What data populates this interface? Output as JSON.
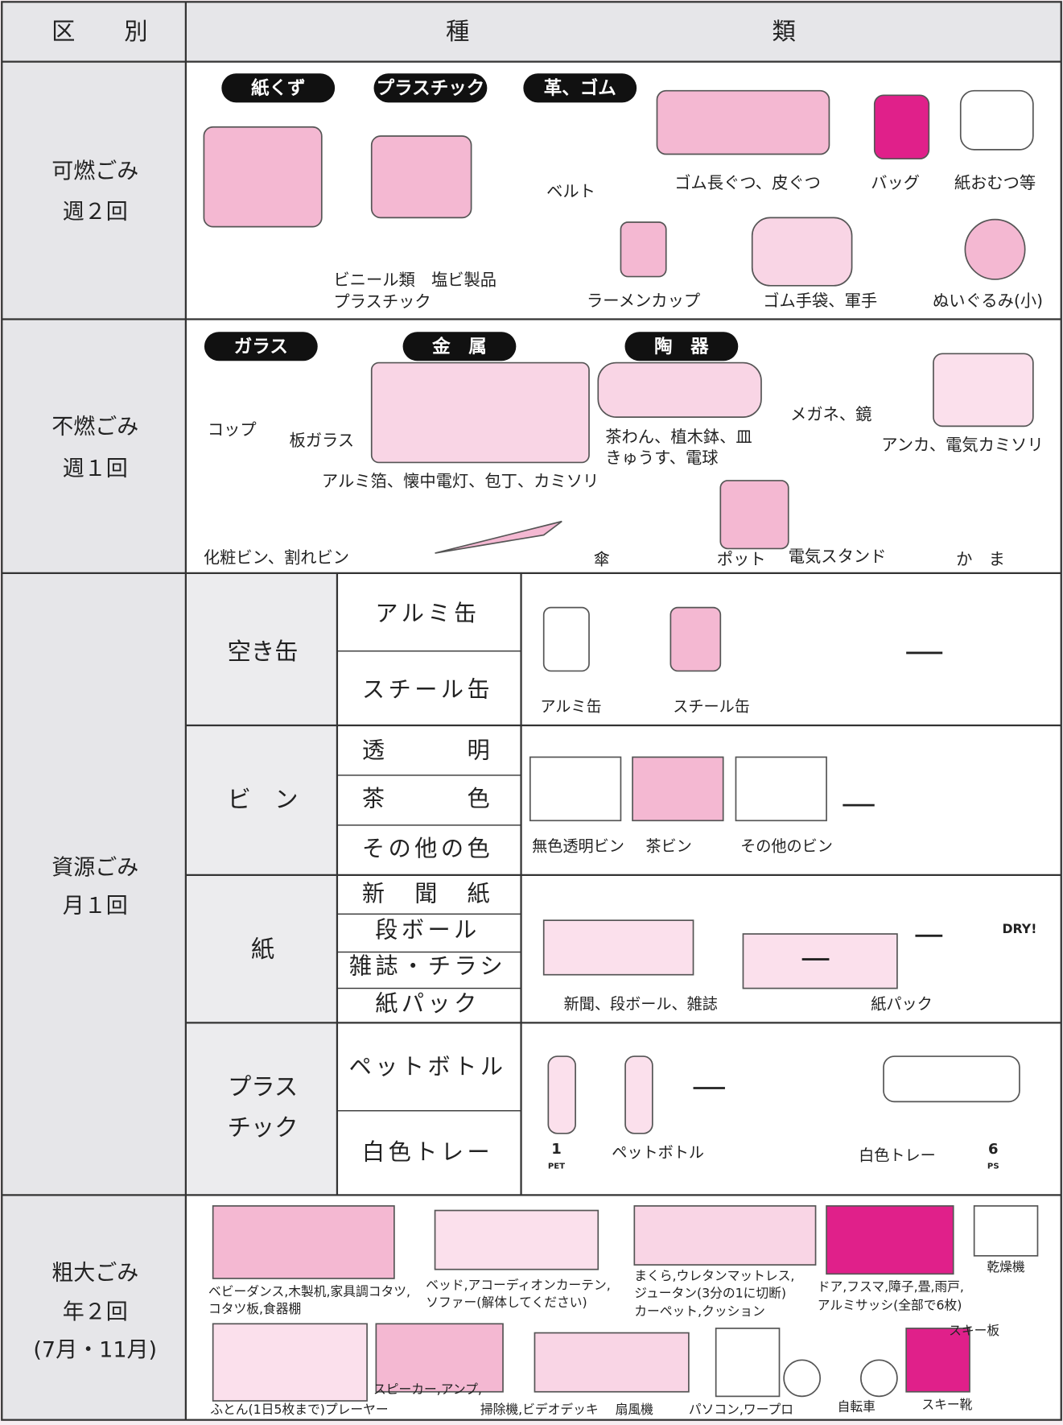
{
  "header": {
    "category": [
      "区",
      "別"
    ],
    "types": [
      "種",
      "類"
    ]
  },
  "combustible": {
    "name": "可燃ごみ",
    "schedule": "週２回",
    "tags": [
      "紙くず",
      "プラスチック",
      "革、ゴム"
    ],
    "items": [
      "ベルト",
      "ゴム長ぐつ、皮ぐつ",
      "バッグ",
      "紙おむつ等",
      "ビニール類　塩ビ製品",
      "プラスチック",
      "ラーメンカップ",
      "ゴム手袋、軍手",
      "ぬいぐるみ(小)"
    ]
  },
  "noncombustible": {
    "name": "不燃ごみ",
    "schedule": "週１回",
    "tags": [
      "ガラス",
      "金　属",
      "陶　器"
    ],
    "items": [
      "コップ",
      "板ガラス",
      "アルミ箔、懐中電灯、包丁、カミソリ",
      "茶わん、植木鉢、皿",
      "きゅうす、電球",
      "メガネ、鏡",
      "アンカ、電気カミソリ",
      "化粧ビン、割れビン",
      "傘",
      "ポット",
      "電気スタンド",
      "か　ま"
    ]
  },
  "resources": {
    "name": "資源ごみ",
    "schedule": "月１回",
    "groups": [
      {
        "name": [
          "空き缶"
        ],
        "kinds": [
          "アルミ缶",
          "スチール缶"
        ],
        "captions": [
          "アルミ缶",
          "スチール缶"
        ]
      },
      {
        "name": [
          "ビ　ン"
        ],
        "kinds": [
          "透　　　明",
          "茶　　　色",
          "その他の色"
        ],
        "captions": [
          "無色透明ビン",
          "茶ビン",
          "その他のビン"
        ]
      },
      {
        "name": [
          "紙"
        ],
        "kinds": [
          "新　聞　紙",
          "段ボール",
          "雑誌・チラシ",
          "紙パック"
        ],
        "captions": [
          "新聞、段ボール、雑誌",
          "紙パック"
        ]
      },
      {
        "name": [
          "プラス",
          "チック"
        ],
        "kinds": [
          "ペットボトル",
          "白色トレー"
        ],
        "captions": [
          "ペットボトル",
          "白色トレー"
        ]
      }
    ],
    "symbols": [
      "PET",
      "1",
      "PS",
      "6",
      "DRY!"
    ]
  },
  "bulky": {
    "name": "粗大ごみ",
    "schedule": "年２回",
    "months": "(7月・11月)",
    "items": [
      "ベビーダンス,木製机,家具調コタツ,",
      "コタツ板,食器棚",
      "ベッド,アコーディオンカーテン,",
      "ソファー(解体してください)",
      "まくら,ウレタンマットレス,",
      "ジュータン(3分の1に切断)",
      "カーペット,クッション",
      "ドア,フスマ,障子,畳,雨戸,",
      "アルミサッシ(全部で6枚)",
      "乾燥機",
      "ふとん(1日5枚まで)プレーヤー",
      "スピーカー,アンプ,",
      "掃除機,ビデオデッキ",
      "扇風機",
      "パソコン,ワープロ",
      "自転車",
      "スキー靴",
      "スキー板"
    ]
  }
}
